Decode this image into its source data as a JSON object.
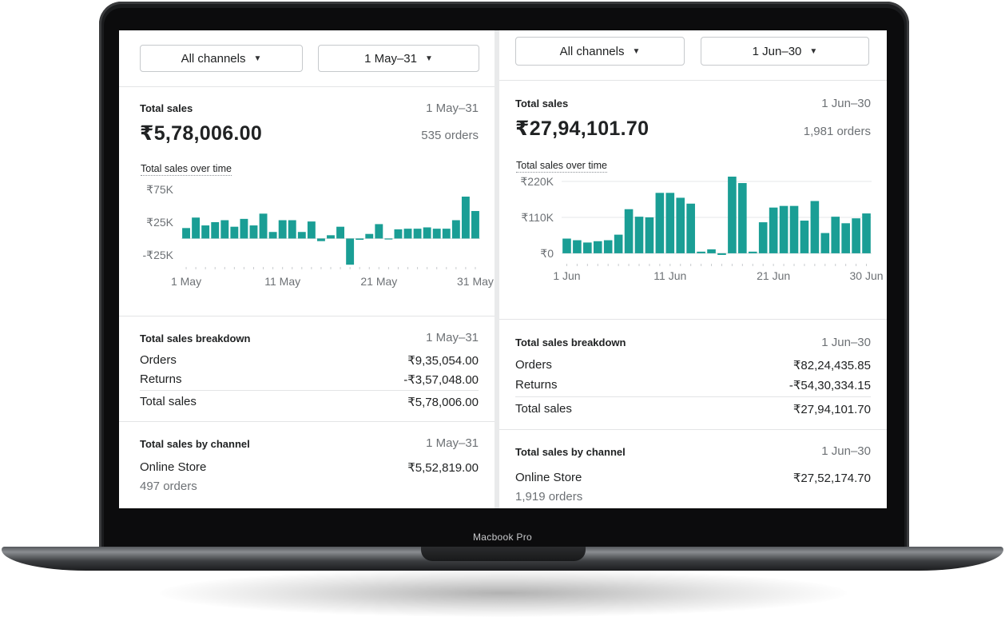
{
  "device": {
    "brand_label": "Macbook Pro"
  },
  "colors": {
    "bar": "#1a9e95",
    "accent_text": "#202223",
    "muted_text": "#6d7175"
  },
  "panels": [
    {
      "channel_filter": "All channels",
      "date_filter": "1 May–31",
      "total_sales": {
        "label": "Total sales",
        "range": "1 May–31",
        "amount": "₹5,78,006.00",
        "orders": "535 orders"
      },
      "over_time_label": "Total sales over time",
      "breakdown": {
        "label": "Total sales breakdown",
        "range": "1 May–31",
        "orders_label": "Orders",
        "orders_value": "₹9,35,054.00",
        "returns_label": "Returns",
        "returns_value": "-₹3,57,048.00",
        "total_label": "Total sales",
        "total_value": "₹5,78,006.00"
      },
      "by_channel": {
        "label": "Total sales by channel",
        "range": "1 May–31",
        "channel": "Online Store",
        "value": "₹5,52,819.00",
        "orders": "497 orders"
      }
    },
    {
      "channel_filter": "All channels",
      "date_filter": "1 Jun–30",
      "total_sales": {
        "label": "Total sales",
        "range": "1 Jun–30",
        "amount": "₹27,94,101.70",
        "orders": "1,981 orders"
      },
      "over_time_label": "Total sales over time",
      "breakdown": {
        "label": "Total sales breakdown",
        "range": "1 Jun–30",
        "orders_label": "Orders",
        "orders_value": "₹82,24,435.85",
        "returns_label": "Returns",
        "returns_value": "-₹54,30,334.15",
        "total_label": "Total sales",
        "total_value": "₹27,94,101.70"
      },
      "by_channel": {
        "label": "Total sales by channel",
        "range": "1 Jun–30",
        "channel": "Online Store",
        "value": "₹27,52,174.70",
        "orders": "1,919 orders"
      }
    }
  ],
  "chart_data": [
    {
      "type": "bar",
      "ylim": [
        -30000,
        75000
      ],
      "y_ticks": [
        75000,
        25000,
        -25000
      ],
      "y_tick_labels": [
        "₹75K",
        "₹25K",
        "-₹25K"
      ],
      "x_tick_labels": [
        "1 May",
        "11 May",
        "21 May",
        "31 May"
      ],
      "x_tick_days": [
        1,
        11,
        21,
        31
      ],
      "x": [
        1,
        2,
        3,
        4,
        5,
        6,
        7,
        8,
        9,
        10,
        11,
        12,
        13,
        14,
        15,
        16,
        17,
        18,
        19,
        20,
        21,
        22,
        23,
        24,
        25,
        26,
        27,
        28,
        29,
        30,
        31
      ],
      "values": [
        16000,
        32000,
        20000,
        25000,
        28000,
        18000,
        30000,
        20000,
        38000,
        10000,
        28000,
        28000,
        10000,
        26000,
        -4000,
        5000,
        18000,
        -40000,
        -2000,
        7000,
        22000,
        -1000,
        14000,
        15000,
        15000,
        17000,
        15000,
        15000,
        28000,
        64000,
        42000
      ],
      "grid": false
    },
    {
      "type": "bar",
      "ylim": [
        -10000,
        220000
      ],
      "y_ticks": [
        220000,
        110000,
        0
      ],
      "y_tick_labels": [
        "₹220K",
        "₹110K",
        "₹0"
      ],
      "x_tick_labels": [
        "1 Jun",
        "11 Jun",
        "21 Jun",
        "30 Jun"
      ],
      "x_tick_days": [
        1,
        11,
        21,
        30
      ],
      "x": [
        1,
        2,
        3,
        4,
        5,
        6,
        7,
        8,
        9,
        10,
        11,
        12,
        13,
        14,
        15,
        16,
        17,
        18,
        19,
        20,
        21,
        22,
        23,
        24,
        25,
        26,
        27,
        28,
        29,
        30
      ],
      "values": [
        45000,
        40000,
        33000,
        37000,
        40000,
        57000,
        135000,
        112000,
        110000,
        185000,
        185000,
        170000,
        152000,
        5000,
        12000,
        -5000,
        240000,
        215000,
        5000,
        95000,
        140000,
        145000,
        145000,
        100000,
        160000,
        62000,
        112000,
        92000,
        107000,
        122000
      ],
      "grid": true
    }
  ]
}
